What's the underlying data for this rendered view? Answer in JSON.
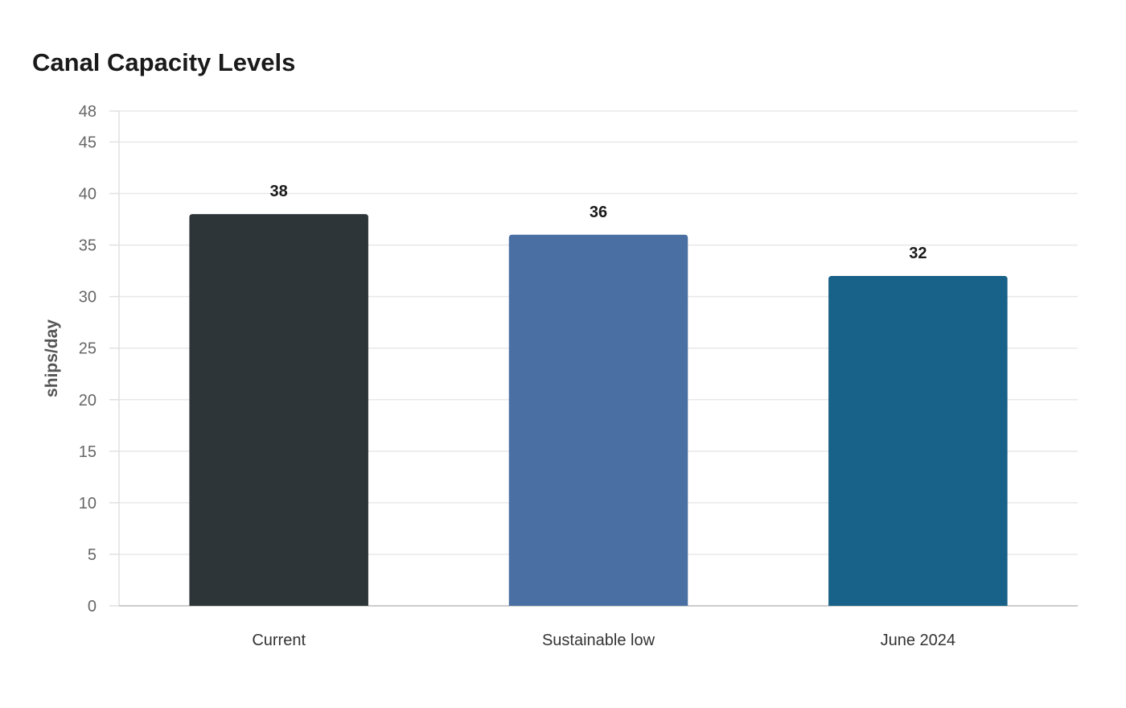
{
  "chart_data": {
    "type": "bar",
    "title": "Canal Capacity Levels",
    "xlabel": "",
    "ylabel": "ships/day",
    "categories": [
      "Current",
      "Sustainable low",
      "June 2024"
    ],
    "values": [
      38,
      36,
      32
    ],
    "colors": [
      "#2e3538",
      "#4a6fa2",
      "#186188"
    ],
    "ylim": [
      0,
      48
    ],
    "yticks": [
      0,
      5,
      10,
      15,
      20,
      25,
      30,
      35,
      40,
      45,
      48
    ],
    "grid": true,
    "legend": "none"
  }
}
